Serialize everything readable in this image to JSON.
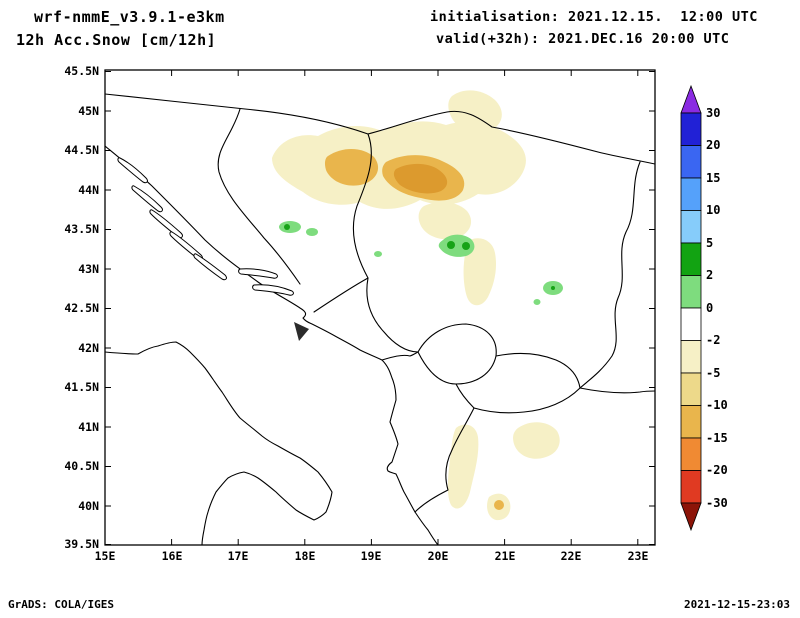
{
  "header": {
    "model": "wrf-nmmE_v3.9.1-e3km",
    "variable": "12h Acc.Snow [cm/12h]",
    "initialisation": "initialisation: 2021.12.15.  12:00 UTC",
    "valid": "valid(+32h): 2021.DEC.16 20:00 UTC"
  },
  "axes": {
    "lat_labels": [
      "45.5N",
      "45N",
      "44.5N",
      "44N",
      "43.5N",
      "43N",
      "42.5N",
      "42N",
      "41.5N",
      "41N",
      "40.5N",
      "40N",
      "39.5N"
    ],
    "lon_labels": [
      "15E",
      "16E",
      "17E",
      "18E",
      "19E",
      "20E",
      "21E",
      "22E",
      "23E"
    ]
  },
  "colorbar": {
    "labels": [
      "30",
      "20",
      "15",
      "10",
      "5",
      "2",
      "0",
      "-2",
      "-5",
      "-10",
      "-15",
      "-20",
      "-30"
    ],
    "segment_colors": [
      "#2121D6",
      "#3A66F2",
      "#55A1FA",
      "#86CCFA",
      "#12A312",
      "#7EDC7E",
      "#FFFFFF",
      "#F6F0C6",
      "#EDD98A",
      "#E9B54C",
      "#F08A33",
      "#E03A22"
    ],
    "top_arrow_color": "#8A2BE2",
    "bottom_arrow_color": "#8C1408"
  },
  "palette": {
    "pale_yellow": "#F6F0C6",
    "khaki": "#EDD98A",
    "goldenrod": "#E9B54C",
    "orange_core": "#DC9A2E",
    "light_green": "#7EDC7E",
    "dark_green": "#17A317",
    "line_black": "#000000"
  },
  "footer": {
    "left": "GrADS: COLA/IGES",
    "right": "2021-12-15-23:03"
  }
}
